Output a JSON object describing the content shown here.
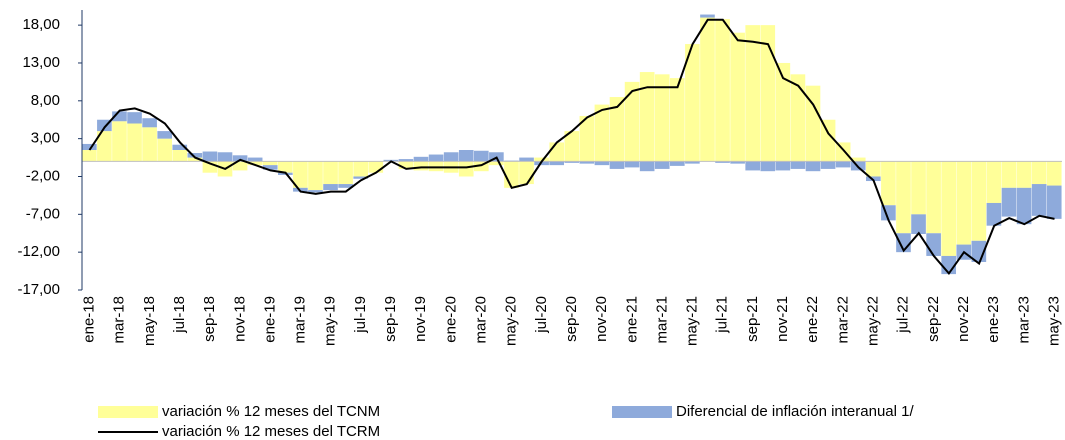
{
  "chart_data": {
    "type": "bar-line",
    "categories": [
      "ene-18",
      null,
      "mar-18",
      null,
      "may-18",
      null,
      "jul-18",
      null,
      "sep-18",
      null,
      "nov-18",
      null,
      "ene-19",
      null,
      "mar-19",
      null,
      "may-19",
      null,
      "jul-19",
      null,
      "sep-19",
      null,
      "nov-19",
      null,
      "ene-20",
      null,
      "mar-20",
      null,
      "may-20",
      null,
      "jul-20",
      null,
      "sep-20",
      null,
      "nov-20",
      null,
      "ene-21",
      null,
      "mar-21",
      null,
      "may-21",
      null,
      "jul-21",
      null,
      "sep-21",
      null,
      "nov-21",
      null,
      "ene-22",
      null,
      "mar-22",
      null,
      "may-22",
      null,
      "jul-22",
      null,
      "sep-22",
      null,
      "nov-22",
      null,
      "ene-23",
      null,
      "mar-23",
      null,
      "may-23"
    ],
    "series": [
      {
        "name": "variación % 12 meses del TCNM",
        "kind": "bar",
        "color": "#ffff99",
        "values": [
          1.5,
          4,
          5.3,
          5,
          4.5,
          3,
          1.5,
          0.5,
          -1.5,
          -2,
          -1.2,
          -0.5,
          -0.5,
          -1.5,
          -3.5,
          -3.8,
          -3,
          -3,
          -2,
          -1.5,
          0,
          -1,
          -1.2,
          -1.3,
          -1.5,
          -2,
          -1.3,
          -0.5,
          -3.5,
          -3,
          0.5,
          2.5,
          4,
          6,
          7.5,
          8.5,
          10.5,
          11.8,
          11.5,
          11,
          15.5,
          19,
          18.8,
          17,
          18,
          18,
          13,
          11.5,
          10,
          5.5,
          2.5,
          0.5,
          -2,
          -5.8,
          -9.5,
          -7,
          -9.5,
          -12.5,
          -11,
          -10.5,
          -5.5,
          -3.5,
          -3.5,
          -3,
          -3.2
        ]
      },
      {
        "name": "Diferencial de inflación interanual 1/",
        "kind": "bar",
        "color": "#8eaadb",
        "values": [
          0.8,
          1.5,
          1.3,
          1.5,
          1.2,
          1,
          0.7,
          0.6,
          1.3,
          1.2,
          0.8,
          0.5,
          -0.6,
          -0.3,
          -0.5,
          -0.3,
          -0.8,
          -0.5,
          -0.3,
          0,
          0.2,
          0.3,
          0.6,
          0.9,
          1.2,
          1.5,
          1.4,
          1.2,
          0.1,
          0.5,
          -0.5,
          -0.5,
          -0.2,
          -0.3,
          -0.5,
          -1,
          -0.8,
          -1.3,
          -1,
          -0.6,
          -0.3,
          0.4,
          -0.2,
          -0.3,
          -1.2,
          -1.3,
          -1.2,
          -1,
          -1.3,
          -1,
          -0.8,
          -1.2,
          -0.6,
          -2,
          -2.5,
          -2.6,
          -3,
          -2.4,
          -2,
          -2.8,
          -3,
          -3.8,
          -4.8,
          -4.2,
          -4.4
        ]
      },
      {
        "name": "variación % 12 meses del TCRM",
        "kind": "line",
        "color": "#000000",
        "values": [
          1.5,
          4.5,
          6.7,
          7,
          6.3,
          5,
          2.5,
          0.5,
          -0.3,
          -1,
          0.2,
          -0.5,
          -1.2,
          -1.5,
          -4,
          -4.3,
          -4,
          -4,
          -2.5,
          -1.5,
          0,
          -1,
          -0.8,
          -0.8,
          -0.8,
          -0.8,
          -0.5,
          0.5,
          -3.5,
          -3,
          0,
          2.5,
          4,
          5.8,
          6.8,
          7.2,
          9.3,
          9.8,
          9.8,
          9.8,
          15.5,
          18.7,
          18.7,
          16,
          15.8,
          15.5,
          11,
          10,
          7.5,
          3.7,
          1.5,
          -0.8,
          -2.5,
          -7.8,
          -11.8,
          -9.5,
          -12.5,
          -14.8,
          -12,
          -13.5,
          -8.5,
          -7.5,
          -8.3,
          -7.2,
          -7.6
        ]
      }
    ],
    "ylim": [
      -17,
      20
    ],
    "yticks": [
      {
        "value": -17,
        "label": "-17,00"
      },
      {
        "value": -12,
        "label": "-12,00"
      },
      {
        "value": -7,
        "label": "-7,00"
      },
      {
        "value": -2,
        "label": "-2,00"
      },
      {
        "value": 3,
        "label": "3,00"
      },
      {
        "value": 8,
        "label": "8,00"
      },
      {
        "value": 13,
        "label": "13,00"
      },
      {
        "value": 18,
        "label": "18,00"
      }
    ],
    "grid": false
  }
}
